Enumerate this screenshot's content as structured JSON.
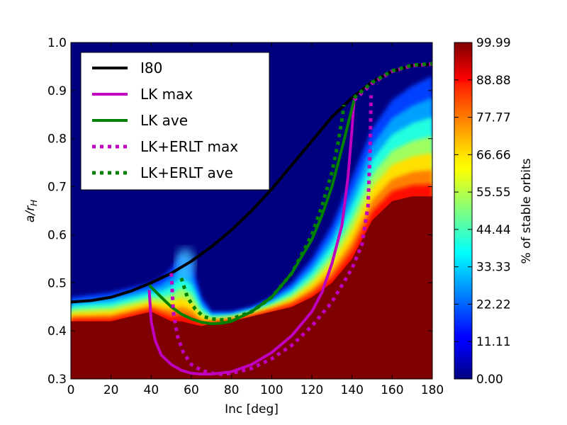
{
  "chart_data": {
    "type": "heatmap",
    "xlabel": "Inc [deg]",
    "ylabel": "a/r",
    "ylabel_sub": "H",
    "xlim": [
      0,
      180
    ],
    "ylim": [
      0.3,
      1.0
    ],
    "x_ticks": [
      "0",
      "20",
      "40",
      "60",
      "80",
      "100",
      "120",
      "140",
      "160",
      "180"
    ],
    "y_ticks": [
      "0.3",
      "0.4",
      "0.5",
      "0.6",
      "0.7",
      "0.8",
      "0.9",
      "1.0"
    ],
    "colorbar": {
      "label": "% of stable orbits",
      "range": [
        0,
        99.99
      ],
      "ticks": [
        "0.00",
        "11.11",
        "22.22",
        "33.33",
        "44.44",
        "55.55",
        "66.66",
        "77.77",
        "88.88",
        "99.99"
      ]
    },
    "heatmap_boundary": {
      "description": "percent stable: ~100 below boundary, ~0 above",
      "x": [
        0,
        10,
        20,
        30,
        40,
        45,
        50,
        55,
        60,
        65,
        70,
        80,
        90,
        100,
        110,
        120,
        130,
        140,
        150,
        160,
        170,
        180
      ],
      "lower": [
        0.42,
        0.42,
        0.42,
        0.43,
        0.44,
        0.43,
        0.42,
        0.42,
        0.415,
        0.41,
        0.415,
        0.42,
        0.43,
        0.44,
        0.45,
        0.47,
        0.5,
        0.55,
        0.63,
        0.67,
        0.68,
        0.68
      ],
      "upper": [
        0.47,
        0.475,
        0.48,
        0.49,
        0.5,
        0.51,
        0.53,
        0.56,
        0.54,
        0.47,
        0.44,
        0.44,
        0.45,
        0.47,
        0.5,
        0.55,
        0.62,
        0.72,
        0.82,
        0.88,
        0.91,
        0.93
      ]
    },
    "series": [
      {
        "name": "I80",
        "color": "#000000",
        "style": "solid",
        "x": [
          0,
          10,
          20,
          30,
          40,
          50,
          60,
          70,
          80,
          90,
          100,
          110,
          120,
          130,
          140,
          150,
          160,
          170,
          180
        ],
        "y": [
          0.46,
          0.463,
          0.47,
          0.483,
          0.5,
          0.52,
          0.545,
          0.575,
          0.61,
          0.65,
          0.695,
          0.745,
          0.795,
          0.845,
          0.885,
          0.918,
          0.94,
          0.952,
          0.955
        ]
      },
      {
        "name": "LK max",
        "color": "#BF00BF",
        "style": "solid",
        "x": [
          39,
          40,
          42,
          45,
          50,
          55,
          60,
          65,
          70,
          80,
          90,
          100,
          110,
          120,
          125,
          130,
          135,
          138,
          140,
          141
        ],
        "y": [
          0.485,
          0.42,
          0.38,
          0.35,
          0.33,
          0.318,
          0.312,
          0.31,
          0.31,
          0.315,
          0.33,
          0.355,
          0.39,
          0.44,
          0.48,
          0.54,
          0.62,
          0.72,
          0.82,
          0.88
        ]
      },
      {
        "name": "LK ave",
        "color": "#008000",
        "style": "solid",
        "x": [
          39,
          45,
          50,
          55,
          60,
          65,
          70,
          75,
          80,
          90,
          100,
          110,
          120,
          125,
          130,
          135,
          138,
          141
        ],
        "y": [
          0.495,
          0.47,
          0.45,
          0.435,
          0.425,
          0.418,
          0.415,
          0.416,
          0.42,
          0.44,
          0.47,
          0.52,
          0.59,
          0.64,
          0.7,
          0.78,
          0.83,
          0.88
        ]
      },
      {
        "name": "LK+ERLT max",
        "color": "#BF00BF",
        "style": "dotted",
        "x": [
          50,
          51,
          53,
          56,
          60,
          65,
          70,
          75,
          80,
          90,
          100,
          110,
          120,
          130,
          140,
          145,
          148,
          149,
          149.5
        ],
        "y": [
          0.52,
          0.44,
          0.39,
          0.355,
          0.33,
          0.318,
          0.312,
          0.31,
          0.312,
          0.322,
          0.342,
          0.37,
          0.41,
          0.46,
          0.53,
          0.58,
          0.66,
          0.78,
          0.89
        ]
      },
      {
        "name": "LK+ERLT ave",
        "color": "#008000",
        "style": "dotted",
        "x": [
          55,
          58,
          62,
          66,
          70,
          75,
          80,
          90,
          100,
          110,
          120,
          125,
          130,
          133,
          135,
          136
        ],
        "y": [
          0.51,
          0.47,
          0.445,
          0.43,
          0.425,
          0.423,
          0.425,
          0.44,
          0.47,
          0.52,
          0.6,
          0.66,
          0.73,
          0.79,
          0.84,
          0.87
        ]
      },
      {
        "name": "LK+ERLT upper branch",
        "legend": false,
        "color": "#BF00BF",
        "style": "dotted",
        "x": [
          141,
          150,
          160,
          170,
          180
        ],
        "y": [
          0.88,
          0.915,
          0.94,
          0.952,
          0.955
        ]
      },
      {
        "name": "LK ave upper branch",
        "legend": false,
        "color": "#008000",
        "style": "dotted",
        "x": [
          141,
          150,
          160,
          170,
          180
        ],
        "y": [
          0.885,
          0.917,
          0.941,
          0.953,
          0.956
        ]
      }
    ],
    "legend": [
      {
        "label": "I80",
        "color": "#000000",
        "style": "solid"
      },
      {
        "label": "LK max",
        "color": "#BF00BF",
        "style": "solid"
      },
      {
        "label": "LK ave",
        "color": "#008000",
        "style": "solid"
      },
      {
        "label": "LK+ERLT max",
        "color": "#BF00BF",
        "style": "dotted"
      },
      {
        "label": "LK+ERLT ave",
        "color": "#008000",
        "style": "dotted"
      }
    ],
    "legend_position": "top-left"
  }
}
